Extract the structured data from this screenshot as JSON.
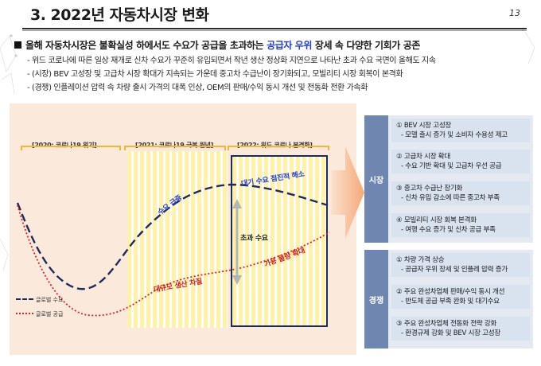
{
  "header": {
    "title": "3. 2022년 자동차시장 변화",
    "page_number": "13"
  },
  "headline": {
    "before": "올해 자동차시장은 불확실성 하에서도 수요가 공급을 초과하는 ",
    "highlight": "공급자 우위",
    "after": " 장세 속 다양한 기회가 공존"
  },
  "bullets": [
    "- 위드 코로나에 따른 일상 재개로 신차 수요가 꾸준히 유입되면서 작년 생산 정상화 지연으로 나타난 초과 수요 국면이 올해도 지속",
    "- (시장) BEV 고성장 및 고급차 시장 확대가 지속되는 가운데 중고차 수급난이 장기화되고, 모빌리티 시장 회복이 본격화",
    "- (경쟁) 인플레이션 압력 속 차량 출시 가격의 대폭 인상, OEM의 판매/수익 동시 개선 및 전동화 전환 가속화"
  ],
  "diagram": {
    "eras": [
      "[2020: 코로나19 위기]",
      "[2021: 코로나19 극복 원년]",
      "[2022: 위드 코로나 본격화]"
    ],
    "labels": {
      "demand_surge": "수요 급증",
      "demand_ease": "대기 수요 점진적 해소",
      "excess_demand": "초과 수요",
      "supply_expand": "가용 물량 확대",
      "production_cut": "대규모 생산 차질"
    },
    "legend": {
      "demand": "글로벌 수요",
      "supply": "글로벌 공급"
    },
    "colors": {
      "demand": "#1e2a5c",
      "supply": "#e02020",
      "accent_blue": "#1e3fd6",
      "arrow": "#f6b48a"
    }
  },
  "side": {
    "market_label": "시장",
    "competition_label": "경쟁",
    "market_items": [
      {
        "title": "① BEV 시장 고성장",
        "sub": "- 모델 출시 증가 및 소비자 수용성 제고"
      },
      {
        "title": "② 고급차 시장 확대",
        "sub": "- 수요 기반 확대 및 고급차 우선 공급"
      },
      {
        "title": "③ 중고차 수급난 장기화",
        "sub": "- 신차 유입 감소에 따른 중고차 부족"
      },
      {
        "title": "④ 모빌리티 시장 회복 본격화",
        "sub": "- 여행 수요 증가 및 신차 공급 부족"
      }
    ],
    "competition_items": [
      {
        "title": "① 차량 가격 상승",
        "sub": "- 공급자 우위 장세 및 인플레 압력 증가"
      },
      {
        "title": "② 주요 완성차업체 판매/수익 동시 개선",
        "sub": "- 반도체 공급 부족 완화 및 대기수요"
      },
      {
        "title": "③ 주요 완성차업체 전동화 전략 강화",
        "sub": "- 환경규제 강화 및 BEV 시장 고성장"
      }
    ]
  }
}
